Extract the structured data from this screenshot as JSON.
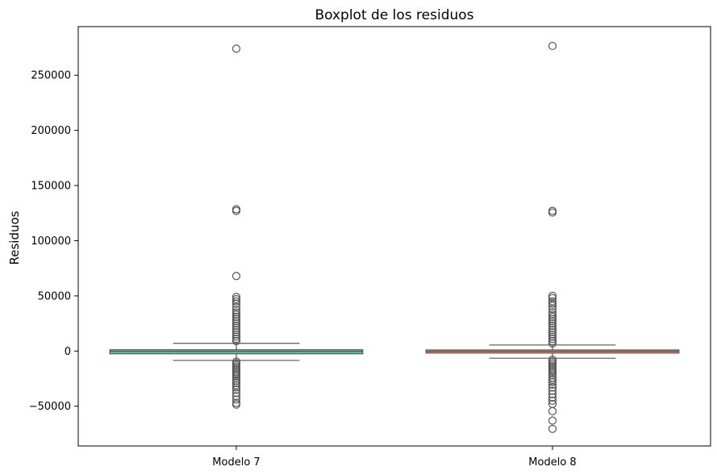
{
  "chart_data": {
    "type": "boxplot",
    "title": "Boxplot de los residuos",
    "xlabel": "",
    "ylabel": "Residuos",
    "ylim": [
      -86000,
      294000
    ],
    "yticks": [
      -50000,
      0,
      50000,
      100000,
      150000,
      200000,
      250000
    ],
    "ytick_labels": [
      "−50000",
      "0",
      "50000",
      "100000",
      "150000",
      "200000",
      "250000"
    ],
    "grid": false,
    "categories": [
      "Modelo 7",
      "Modelo 8"
    ],
    "series": [
      {
        "category": "Modelo 7",
        "color": "#66c2a5",
        "whisker_low": -8500,
        "q1": -2500,
        "median": -300,
        "q3": 1200,
        "whisker_high": 7000,
        "outliers": [
          274000,
          128500,
          127000,
          68000,
          49000,
          47000,
          45000,
          43000,
          40000,
          37000,
          35000,
          33000,
          31000,
          29000,
          27000,
          25000,
          23000,
          21000,
          19000,
          17000,
          15000,
          13000,
          11000,
          9000,
          -9500,
          -11000,
          -12500,
          -14000,
          -15500,
          -17000,
          -18500,
          -20000,
          -21500,
          -23000,
          -25000,
          -27000,
          -29000,
          -31000,
          -33000,
          -35000,
          -38000,
          -41000,
          -44000,
          -47000,
          -48500
        ]
      },
      {
        "category": "Modelo 8",
        "color": "#fc8d62",
        "whisker_low": -6500,
        "q1": -1800,
        "median": -200,
        "q3": 1000,
        "whisker_high": 5500,
        "outliers": [
          276500,
          127000,
          125500,
          50000,
          48000,
          45000,
          43000,
          41000,
          38000,
          35000,
          33000,
          31000,
          29000,
          27000,
          25000,
          23000,
          21000,
          19000,
          17000,
          15000,
          13000,
          11000,
          9000,
          7000,
          -8000,
          -9500,
          -11000,
          -12500,
          -14000,
          -15500,
          -17000,
          -18500,
          -20000,
          -22000,
          -24000,
          -26000,
          -28000,
          -30500,
          -33000,
          -36000,
          -39000,
          -42000,
          -45000,
          -48000,
          -54500,
          -63000,
          -70500
        ]
      }
    ]
  }
}
